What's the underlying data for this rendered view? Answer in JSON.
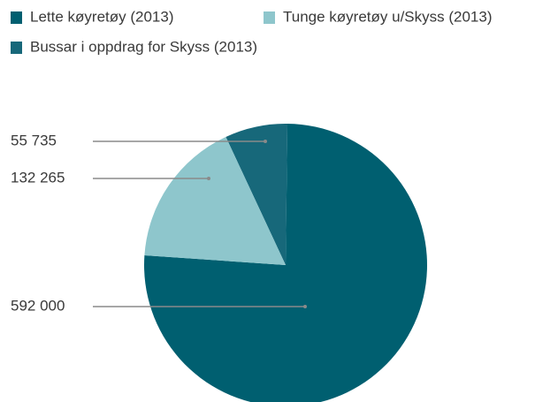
{
  "chart_data": {
    "type": "pie",
    "categories": [
      "Lette køyretøy (2013)",
      "Tunge køyretøy u/Skyss (2013)",
      "Bussar i oppdrag for Skyss (2013)"
    ],
    "values": [
      592000,
      132265,
      55735
    ],
    "value_labels": [
      "592 000",
      "132 265",
      "55 735"
    ],
    "colors": [
      "#005f70",
      "#8ec6cc",
      "#17687a"
    ]
  }
}
